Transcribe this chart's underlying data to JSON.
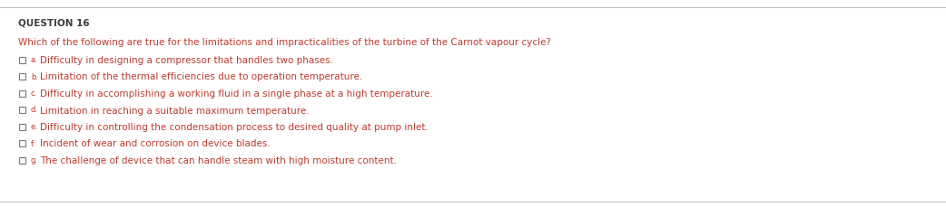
{
  "title": "QUESTION 16",
  "title_color": "#3D3D3D",
  "title_fontsize": 7.5,
  "title_bold": true,
  "question_text": "Which of the following are true for the limitations and impracticalities of the turbine of the Carnot vapour cycle?",
  "question_color": "#C0392B",
  "question_fontsize": 7.5,
  "options": [
    {
      "label": "a.",
      "text": "Difficulty in designing a compressor that handles two phases."
    },
    {
      "label": "b.",
      "text": "Limitation of the thermal efficiencies due to operation temperature."
    },
    {
      "label": "c.",
      "text": "Difficulty in accomplishing a working fluid in a single phase at a high temperature."
    },
    {
      "label": "d.",
      "text": "Limitation in reaching a suitable maximum temperature."
    },
    {
      "label": "e.",
      "text": "Difficulty in controlling the condensation process to desired quality at pump inlet."
    },
    {
      "label": "f.",
      "text": "Incident of wear and corrosion on device blades."
    },
    {
      "label": "g.",
      "text": "The challenge of device that can handle steam with high moisture content."
    }
  ],
  "option_color": "#C0392B",
  "option_fontsize": 7.5,
  "background_color": "#FFFFFF",
  "line_color": "#BBBBBB",
  "checkbox_color": "#777777",
  "fig_width": 10.42,
  "fig_height": 2.29,
  "dpi": 100
}
